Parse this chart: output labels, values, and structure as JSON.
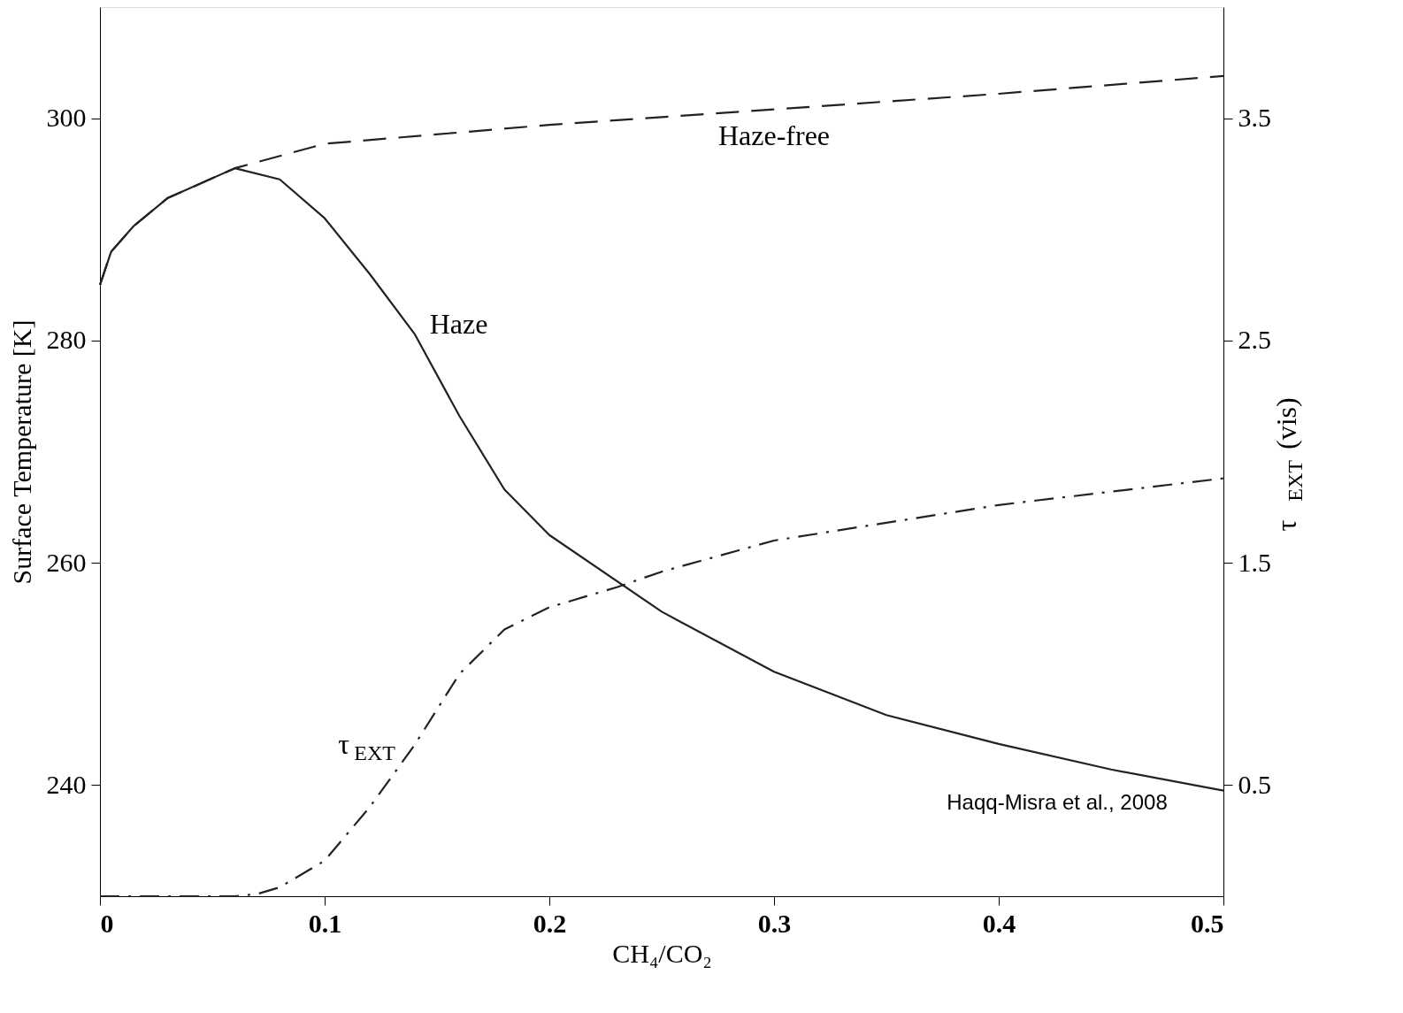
{
  "chart_data": {
    "type": "line",
    "xlabel": "CH₄/CO₂",
    "ylabel": "Surface Temperature [K]",
    "y2label": "τ$_{EXT}$ (vis)",
    "xlim": [
      0,
      0.5
    ],
    "xticks": [
      0,
      0.1,
      0.2,
      0.3,
      0.4,
      0.5
    ],
    "ylim": [
      230,
      310
    ],
    "yticks": [
      240,
      260,
      280,
      300
    ],
    "y2lim": [
      0,
      4
    ],
    "y2ticks": [
      0.5,
      1.5,
      2.5,
      3.5
    ],
    "grid": false,
    "marker": "none",
    "series": [
      {
        "name": "Haze-free",
        "color": "#222222",
        "line_style": "dashed",
        "x": [
          0,
          0.005,
          0.015,
          0.03,
          0.06,
          0.1,
          0.2,
          0.3,
          0.4,
          0.5
        ],
        "values": [
          285,
          288,
          290.3,
          292.8,
          295.5,
          297.7,
          299.4,
          300.8,
          302.2,
          303.8
        ]
      },
      {
        "name": "Haze",
        "color": "#222222",
        "line_style": "solid",
        "x": [
          0,
          0.005,
          0.015,
          0.03,
          0.06,
          0.08,
          0.1,
          0.12,
          0.14,
          0.16,
          0.18,
          0.2,
          0.25,
          0.3,
          0.35,
          0.4,
          0.45,
          0.5
        ],
        "values": [
          285,
          288,
          290.3,
          292.8,
          295.5,
          294.5,
          291,
          286,
          280.6,
          273.2,
          266.6,
          262.5,
          255.6,
          250.2,
          246.3,
          243.7,
          241.4,
          239.5
        ]
      },
      {
        "name": "τ$_{EXT}$",
        "color": "#222222",
        "line_style": "dashdot",
        "axis": "y2",
        "x": [
          0,
          0.06,
          0.07,
          0.08,
          0.1,
          0.12,
          0.14,
          0.16,
          0.18,
          0.2,
          0.23,
          0.25,
          0.3,
          0.35,
          0.4,
          0.45,
          0.5
        ],
        "values": [
          0,
          0,
          0.01,
          0.04,
          0.16,
          0.4,
          0.68,
          1.0,
          1.2,
          1.3,
          1.39,
          1.46,
          1.6,
          1.68,
          1.76,
          1.82,
          1.88
        ]
      }
    ],
    "annotations": [
      "Haqq-Misra et al., 2008"
    ]
  }
}
